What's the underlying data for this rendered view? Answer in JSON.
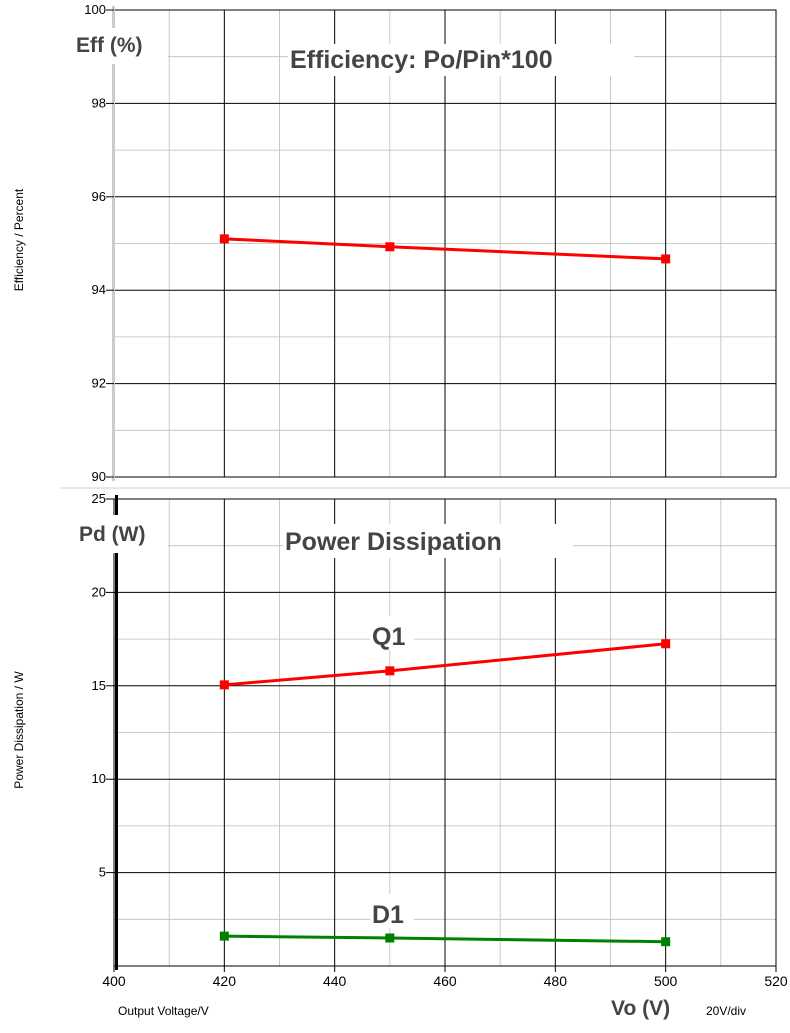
{
  "chart_data": [
    {
      "type": "line",
      "title": "Efficiency: Po/Pin*100",
      "corner_label": "Eff (%)",
      "ylabel": "Efficiency / Percent",
      "xlim": [
        400,
        520
      ],
      "ylim": [
        90,
        100
      ],
      "x_ticks": [],
      "y_ticks": [
        90,
        92,
        94,
        96,
        98,
        100
      ],
      "grid": true,
      "series": [
        {
          "x": [
            420,
            450,
            500
          ],
          "values": [
            95.1,
            94.93,
            94.67
          ],
          "color": "#ff0000"
        }
      ]
    },
    {
      "type": "line",
      "title": "Power  Dissipation",
      "corner_label": "Pd (W)",
      "ylabel": "Power Dissipation / W",
      "xlabel": "Output Voltage/V",
      "xlim": [
        400,
        520
      ],
      "ylim": [
        0,
        25
      ],
      "x_ticks": [
        400,
        420,
        440,
        460,
        480,
        500,
        520
      ],
      "y_ticks": [
        5,
        10,
        15,
        20,
        25
      ],
      "grid": true,
      "series": [
        {
          "name": "Q1",
          "x": [
            420,
            450,
            500
          ],
          "values": [
            15.05,
            15.8,
            17.25
          ],
          "color": "#ff0000"
        },
        {
          "name": "D1",
          "x": [
            420,
            450,
            500
          ],
          "values": [
            1.6,
            1.5,
            1.3
          ],
          "color": "#008000"
        }
      ]
    }
  ],
  "x_axis_caption": "Vo (V)",
  "x_division_note": "20V/div"
}
